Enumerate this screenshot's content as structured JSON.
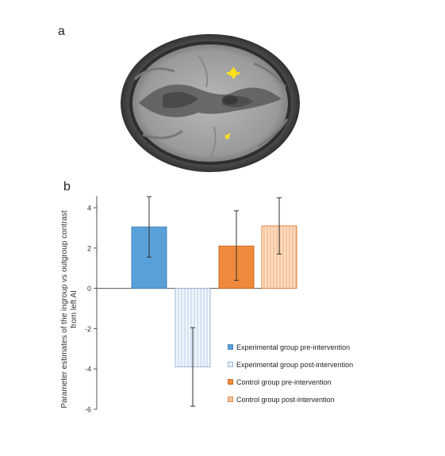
{
  "panels": {
    "a": "a",
    "b": "b"
  },
  "chart_data": {
    "type": "bar",
    "title": "",
    "xlabel": "",
    "ylabel": "Parameter estimates of the ingroup vs outgroup contrast from left AI",
    "ylim": [
      -6,
      4
    ],
    "yticks": [
      -6,
      -4,
      -2,
      0,
      2,
      4
    ],
    "grid": false,
    "legend_position": "bottom-right",
    "series": [
      {
        "name": "Experimental group pre-intervention",
        "value": 3.05,
        "error_low": 1.55,
        "error_high": 4.55,
        "fill": "#5aa0d8",
        "stroke": "#4a86b8",
        "pattern": "solid"
      },
      {
        "name": "Experimental group post-intervention",
        "value": -3.9,
        "error_low": -5.85,
        "error_high": -1.95,
        "fill": "#e6effa",
        "stroke": "#9fb8d6",
        "pattern": "vertical-lines"
      },
      {
        "name": "Control group pre-intervention",
        "value": 2.1,
        "error_low": 0.4,
        "error_high": 3.85,
        "fill": "#ef8a3c",
        "stroke": "#c86a25",
        "pattern": "solid"
      },
      {
        "name": "Control group post-intervention",
        "value": 3.1,
        "error_low": 1.7,
        "error_high": 4.5,
        "fill": "#f7c49a",
        "stroke": "#e08a4a",
        "pattern": "vertical-lines"
      }
    ]
  }
}
